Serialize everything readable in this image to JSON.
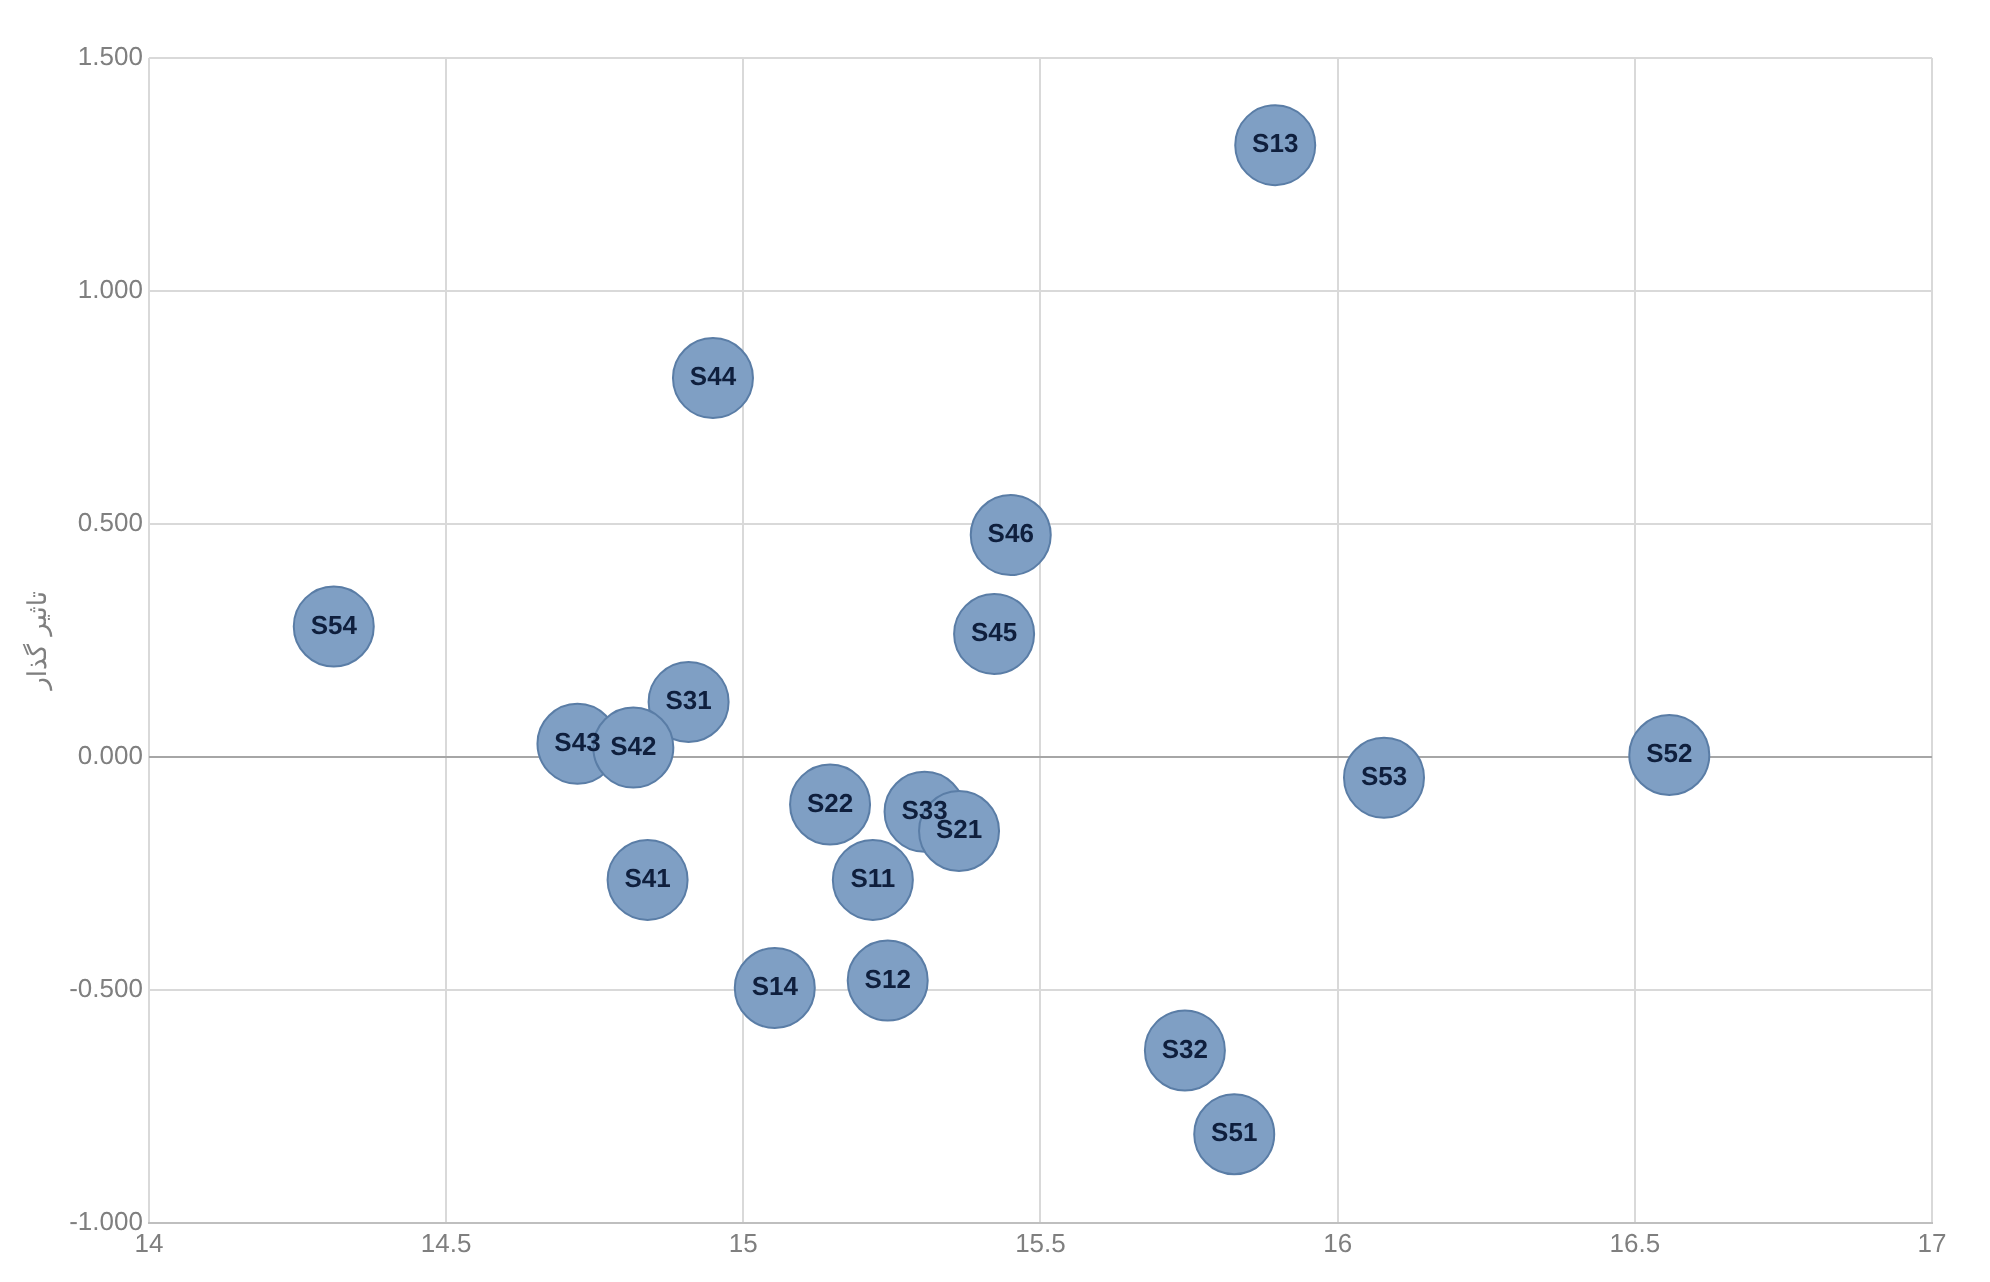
{
  "chart_data": {
    "type": "scatter",
    "ylabel": "تاثیر گذار",
    "color": "#7f9fc4",
    "marker": "circle",
    "grid": true,
    "legend": false,
    "x": [
      15.895,
      14.949,
      15.45,
      14.311,
      15.422,
      14.908,
      14.721,
      14.815,
      16.078,
      16.558,
      15.146,
      15.305,
      15.363,
      14.839,
      15.218,
      15.053,
      15.243,
      15.743,
      15.826
    ],
    "values": [
      1.313,
      0.813,
      0.476,
      0.28,
      0.264,
      0.118,
      0.028,
      0.02,
      -0.045,
      0.004,
      -0.102,
      -0.118,
      -0.159,
      -0.264,
      -0.264,
      -0.496,
      -0.48,
      -0.63,
      -0.81
    ],
    "annotations": [
      {
        "text": "S13",
        "x": 15.895,
        "y": 1.313
      },
      {
        "text": "S44",
        "x": 14.949,
        "y": 0.813
      },
      {
        "text": "S46",
        "x": 15.45,
        "y": 0.476
      },
      {
        "text": "S54",
        "x": 14.311,
        "y": 0.28
      },
      {
        "text": "S45",
        "x": 15.422,
        "y": 0.264
      },
      {
        "text": "S31",
        "x": 14.908,
        "y": 0.118
      },
      {
        "text": "S43",
        "x": 14.721,
        "y": 0.028
      },
      {
        "text": "S42",
        "x": 14.815,
        "y": 0.02
      },
      {
        "text": "S53",
        "x": 16.078,
        "y": -0.045
      },
      {
        "text": "S52",
        "x": 16.558,
        "y": 0.004
      },
      {
        "text": "S22",
        "x": 15.146,
        "y": -0.102
      },
      {
        "text": "S33",
        "x": 15.305,
        "y": -0.118
      },
      {
        "text": "S21",
        "x": 15.363,
        "y": -0.159
      },
      {
        "text": "S41",
        "x": 14.839,
        "y": -0.264
      },
      {
        "text": "S11",
        "x": 15.218,
        "y": -0.264
      },
      {
        "text": "S14",
        "x": 15.053,
        "y": -0.496
      },
      {
        "text": "S12",
        "x": 15.243,
        "y": -0.48
      },
      {
        "text": "S32",
        "x": 15.743,
        "y": -0.63
      },
      {
        "text": "S51",
        "x": 15.826,
        "y": -0.81
      }
    ],
    "xlim": [
      14,
      17
    ],
    "xticks": [
      14,
      14.5,
      15,
      15.5,
      16,
      16.5,
      17
    ],
    "ylim": [
      -1,
      1.5
    ],
    "yticks": [
      {
        "value": -1,
        "label": "-1.000"
      },
      {
        "value": -0.5,
        "label": "-0.500"
      },
      {
        "value": 0,
        "label": "0.000"
      },
      {
        "value": 0.5,
        "label": "0.500"
      },
      {
        "value": 1,
        "label": "1.000"
      },
      {
        "value": 1.5,
        "label": "1.500"
      }
    ]
  }
}
